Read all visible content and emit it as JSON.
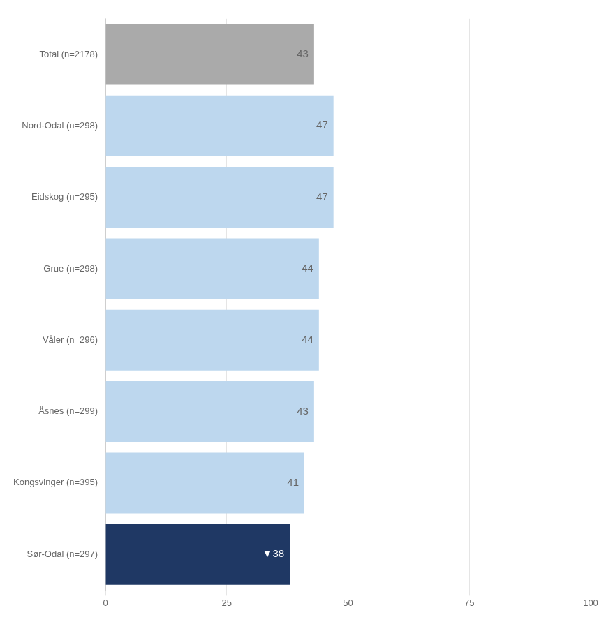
{
  "chart_data": {
    "type": "bar",
    "orientation": "horizontal",
    "categories": [
      "Total (n=2178)",
      "Nord-Odal (n=298)",
      "Eidskog (n=295)",
      "Grue (n=298)",
      "Våler (n=296)",
      "Åsnes (n=299)",
      "Kongsvinger (n=395)",
      "Sør-Odal (n=297)"
    ],
    "values": [
      43,
      47,
      47,
      44,
      44,
      43,
      41,
      38
    ],
    "value_labels": [
      "43",
      "47",
      "47",
      "44",
      "44",
      "43",
      "41",
      "▼38"
    ],
    "colors": [
      "#aaaaaa",
      "#bdd7ee",
      "#bdd7ee",
      "#bdd7ee",
      "#bdd7ee",
      "#bdd7ee",
      "#bdd7ee",
      "#1f3864"
    ],
    "xlim": [
      0,
      100
    ],
    "xticks": [
      0,
      25,
      50,
      75,
      100
    ],
    "grid": true,
    "data_labels": true
  }
}
